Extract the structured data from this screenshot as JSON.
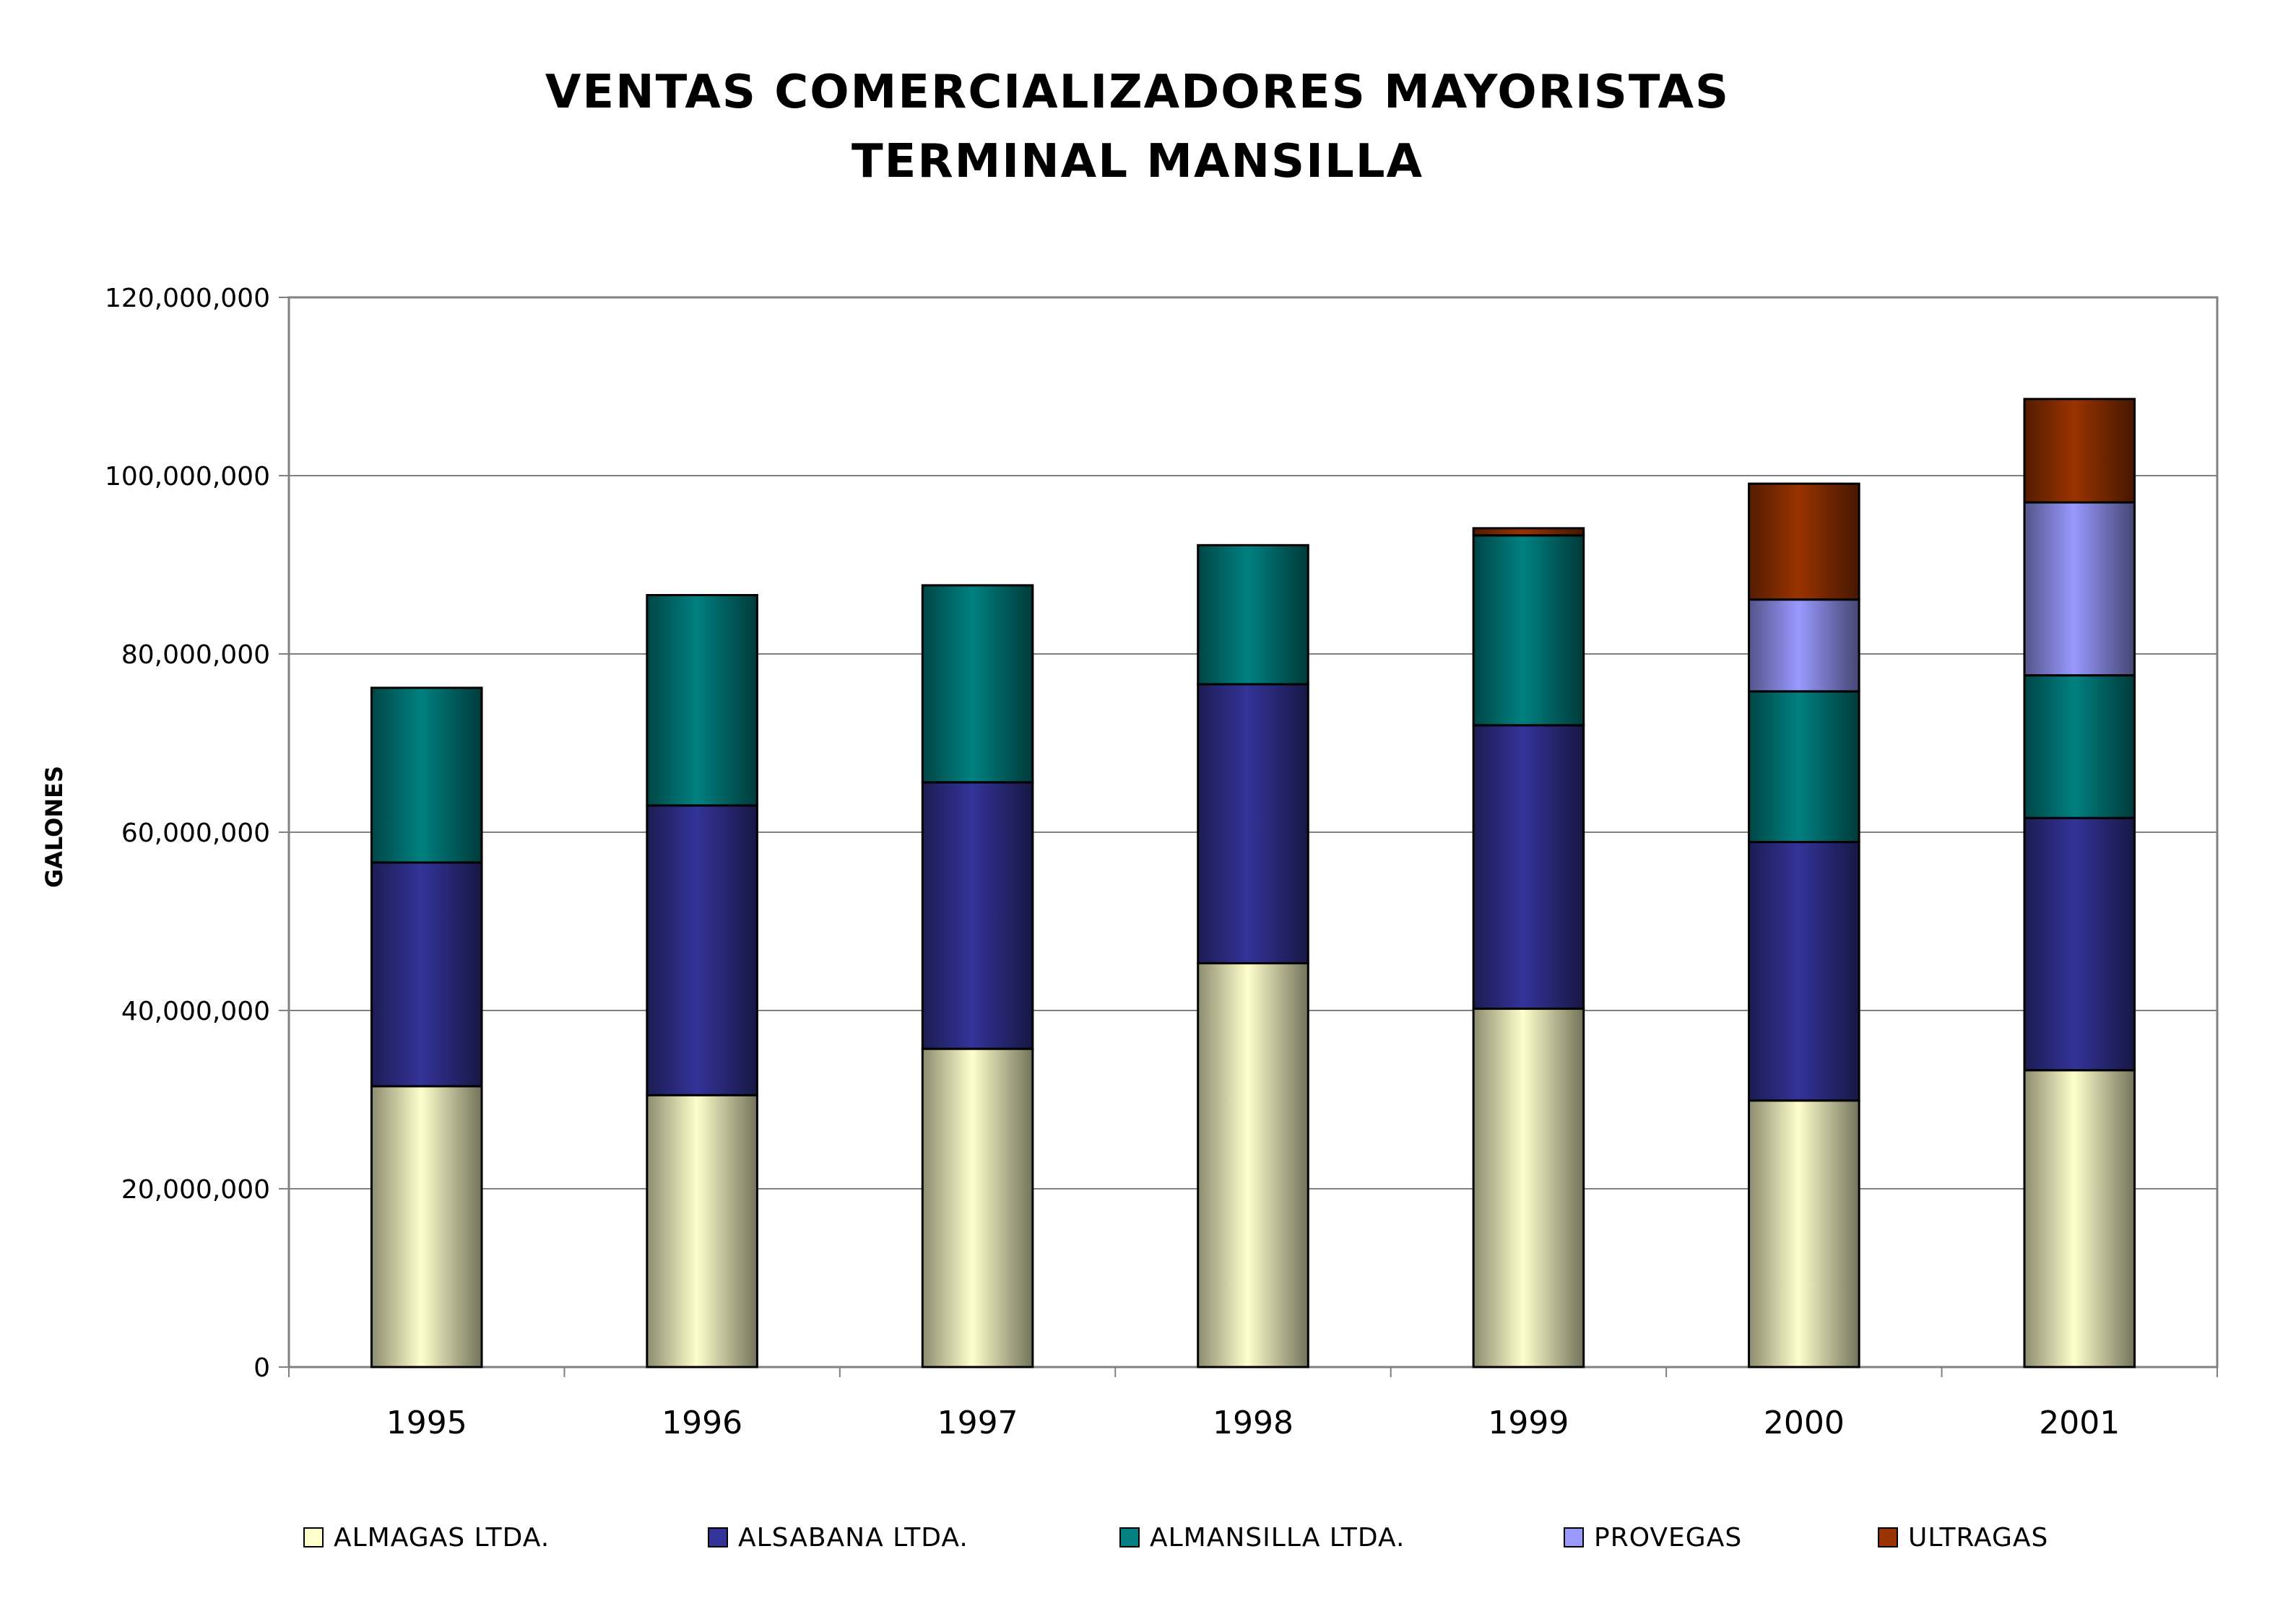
{
  "chart_data": {
    "type": "bar",
    "stacked": true,
    "title": [
      "VENTAS COMERCIALIZADORES MAYORISTAS",
      "TERMINAL MANSILLA"
    ],
    "xlabel": "",
    "ylabel": "GALONES",
    "ylim": [
      0,
      120000000
    ],
    "yticks": [
      0,
      20000000,
      40000000,
      60000000,
      80000000,
      100000000,
      120000000
    ],
    "ytick_labels": [
      "0",
      "20,000,000",
      "40,000,000",
      "60,000,000",
      "80,000,000",
      "100,000,000",
      "120,000,000"
    ],
    "grid": true,
    "legend_position": "bottom",
    "categories": [
      "1995",
      "1996",
      "1997",
      "1998",
      "1999",
      "2000",
      "2001"
    ],
    "series": [
      {
        "name": "ALMAGAS LTDA.",
        "color": "#FFFFCC",
        "values": [
          31500000,
          30500000,
          35700000,
          45300000,
          40200000,
          29900000,
          33300000
        ]
      },
      {
        "name": "ALSABANA LTDA.",
        "color": "#333399",
        "values": [
          25100000,
          32500000,
          29900000,
          31300000,
          31800000,
          29000000,
          28300000
        ]
      },
      {
        "name": "ALMANSILLA LTDA.",
        "color": "#008080",
        "values": [
          19600000,
          23600000,
          22100000,
          15600000,
          21300000,
          16900000,
          16000000
        ]
      },
      {
        "name": "PROVEGAS",
        "color": "#9999FF",
        "values": [
          0,
          0,
          0,
          0,
          0,
          10300000,
          19400000
        ]
      },
      {
        "name": "ULTRAGAS",
        "color": "#993300",
        "values": [
          0,
          0,
          0,
          0,
          800000,
          13000000,
          11600000
        ]
      }
    ]
  }
}
